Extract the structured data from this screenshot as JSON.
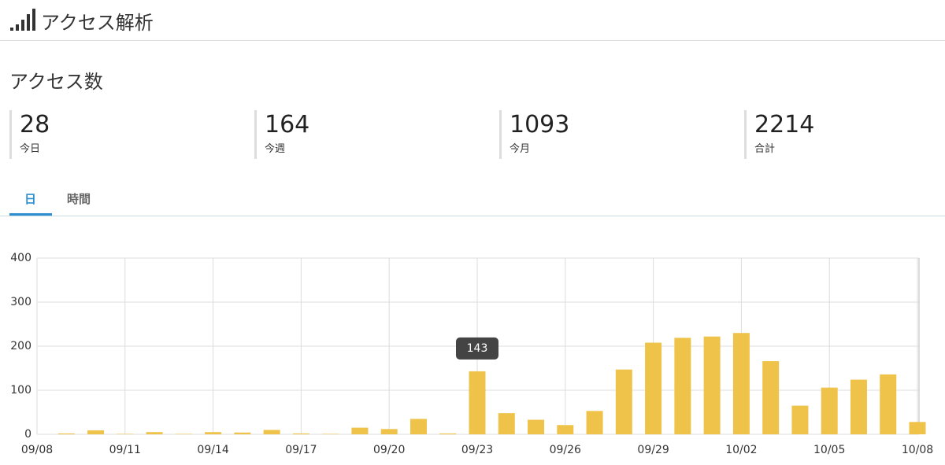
{
  "header": {
    "title": "アクセス解析"
  },
  "section_title": "アクセス数",
  "stats": [
    {
      "value": 28,
      "label": "今日"
    },
    {
      "value": 164,
      "label": "今週"
    },
    {
      "value": 1093,
      "label": "今月"
    },
    {
      "value": 2214,
      "label": "合計"
    }
  ],
  "tabs": [
    "日",
    "時間"
  ],
  "chart_data": {
    "type": "bar",
    "categories": [
      "09/08",
      null,
      null,
      "09/11",
      null,
      null,
      "09/14",
      null,
      null,
      "09/17",
      null,
      null,
      "09/20",
      null,
      null,
      "09/23",
      null,
      null,
      "09/26",
      null,
      null,
      "09/29",
      null,
      null,
      "10/02",
      null,
      null,
      "10/05",
      null,
      null,
      "10/08"
    ],
    "values": [
      null,
      2,
      9,
      1,
      5,
      1,
      5,
      4,
      10,
      2,
      1,
      15,
      12,
      35,
      2,
      143,
      48,
      33,
      21,
      53,
      147,
      208,
      219,
      222,
      230,
      166,
      65,
      106,
      124,
      136,
      28
    ],
    "color": "#efc34a",
    "ylim": [
      0,
      400
    ],
    "yticks": [
      0,
      100,
      200,
      300,
      400
    ],
    "grid": true
  }
}
